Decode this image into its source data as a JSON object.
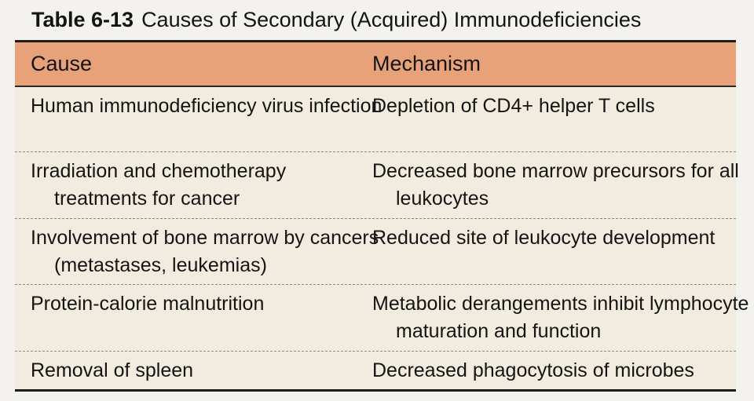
{
  "title": {
    "number": "Table 6-13",
    "text": "Causes of Secondary (Acquired) Immunodeficiencies"
  },
  "table": {
    "headers": [
      "Cause",
      "Mechanism"
    ],
    "rows": [
      {
        "cause": "Human immunodeficiency virus infection",
        "mechanism": "Depletion of CD4+ helper T cells"
      },
      {
        "cause": "Irradiation and chemotherapy treatments for cancer",
        "mechanism": "Decreased bone marrow precursors for all leukocytes"
      },
      {
        "cause": "Involvement of bone marrow by cancers (metastases, leukemias)",
        "mechanism": "Reduced site of leukocyte development"
      },
      {
        "cause": "Protein-calorie malnutrition",
        "mechanism": "Metabolic derangements inhibit lymphocyte maturation and function"
      },
      {
        "cause": "Removal of spleen",
        "mechanism": "Decreased phagocytosis of microbes"
      }
    ]
  },
  "colors": {
    "header_background": "#e8a27a",
    "row_background": "#f1ecdf",
    "page_background": "#f4f2ee"
  }
}
